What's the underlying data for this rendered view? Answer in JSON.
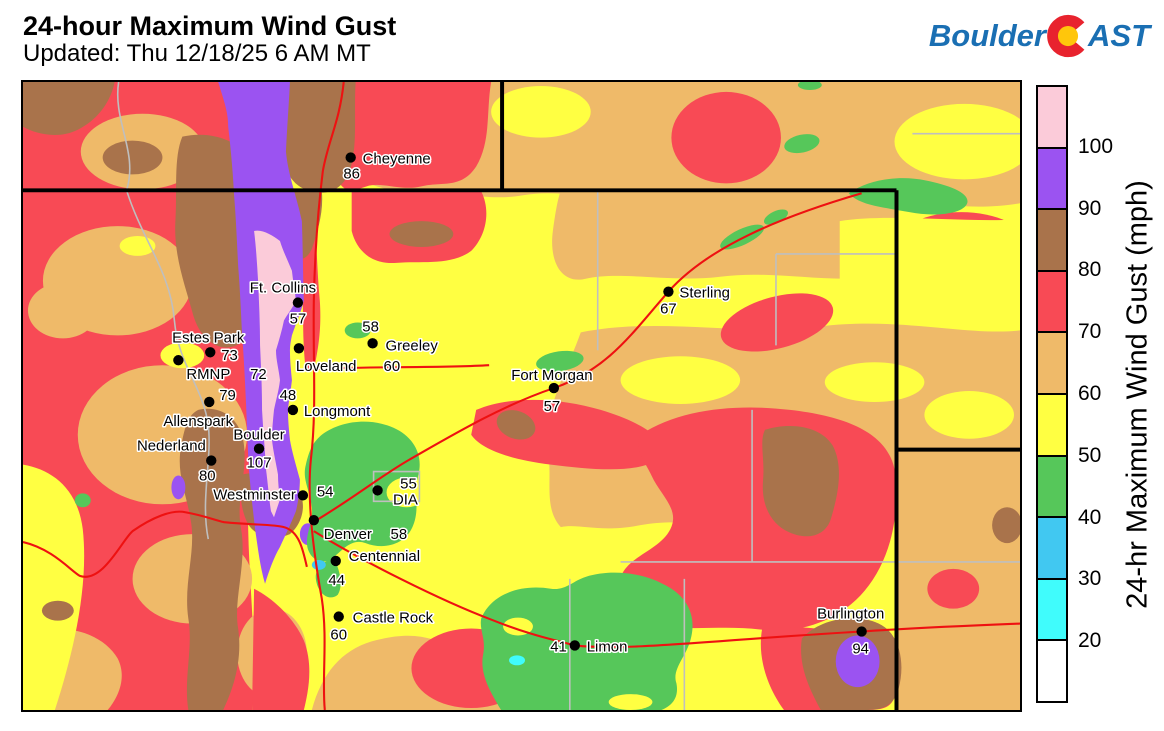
{
  "header": {
    "title": "24-hour Maximum Wind Gust",
    "subtitle": "Updated: Thu 12/18/25 6 AM MT"
  },
  "logo": {
    "prefix": "Boulder",
    "suffix": "AST",
    "blue": "#1A6FB3",
    "red": "#E8232E",
    "yellow": "#FFC60B"
  },
  "legend": {
    "axis_label": "24-hr Maximum Wind Gust (mph)",
    "ticks": [
      100,
      90,
      80,
      70,
      60,
      50,
      40,
      30,
      20
    ],
    "swatches_top_to_bottom": [
      {
        "range": ">100",
        "color": "#FBCBD9"
      },
      {
        "range": "90-100",
        "color": "#9B53F1"
      },
      {
        "range": "80-90",
        "color": "#A9734B"
      },
      {
        "range": "70-80",
        "color": "#F84A55"
      },
      {
        "range": "60-70",
        "color": "#EFBA69"
      },
      {
        "range": "50-60",
        "color": "#FFFF42"
      },
      {
        "range": "40-50",
        "color": "#56C75A"
      },
      {
        "range": "30-40",
        "color": "#41C8F1"
      },
      {
        "range": "20-30",
        "color": "#40FCFC"
      },
      {
        "range": "<20",
        "color": "#FFFFFF"
      }
    ]
  },
  "map": {
    "cities": [
      {
        "id": "cheyenne",
        "name": "Cheyenne",
        "value": 86,
        "dot": [
          329,
          76
        ],
        "name_pos": [
          341,
          82,
          "s"
        ],
        "val_pos": [
          330,
          97,
          "m"
        ]
      },
      {
        "id": "ft-collins",
        "name": "Ft. Collins",
        "value": 57,
        "dot": [
          276,
          222
        ],
        "name_pos": [
          261,
          212,
          "m"
        ],
        "val_pos": [
          276,
          243,
          "m"
        ]
      },
      {
        "id": "estes-park",
        "name": "Estes Park",
        "value": 73,
        "dot": [
          188,
          272
        ],
        "name_pos": [
          186,
          262,
          "m"
        ],
        "val_pos": [
          199,
          280,
          "s"
        ]
      },
      {
        "id": "rmnp",
        "name": "RMNP",
        "value": 72,
        "dot": [
          156,
          280
        ],
        "name_pos": [
          164,
          299,
          "s"
        ],
        "val_pos": [
          228,
          299,
          "s"
        ]
      },
      {
        "id": "greeley",
        "name": "Greeley",
        "value": 58,
        "dot": [
          351,
          263
        ],
        "name_pos": [
          364,
          270,
          "s"
        ],
        "val_pos": [
          349,
          251,
          "m"
        ]
      },
      {
        "id": "loveland",
        "name": "Loveland",
        "value": 60,
        "dot": [
          277,
          268
        ],
        "name_pos": [
          274,
          291,
          "s"
        ],
        "val_pos": [
          362,
          291,
          "s"
        ]
      },
      {
        "id": "allenspark",
        "name": "Allenspark",
        "value": 79,
        "dot": [
          187,
          322
        ],
        "name_pos": [
          141,
          346,
          "s"
        ],
        "val_pos": [
          197,
          320,
          "s"
        ]
      },
      {
        "id": "longmont",
        "name": "Longmont",
        "value": 48,
        "dot": [
          271,
          330
        ],
        "name_pos": [
          282,
          336,
          "s"
        ],
        "val_pos": [
          266,
          320,
          "m"
        ]
      },
      {
        "id": "boulder",
        "name": "Boulder",
        "value": 107,
        "dot": [
          237,
          369
        ],
        "name_pos": [
          237,
          360,
          "m"
        ],
        "val_pos": [
          237,
          388,
          "m"
        ]
      },
      {
        "id": "nederland",
        "name": "Nederland",
        "value": 80,
        "dot": [
          189,
          381
        ],
        "name_pos": [
          149,
          371,
          "m"
        ],
        "val_pos": [
          185,
          401,
          "m"
        ]
      },
      {
        "id": "westminster",
        "name": "Westminster",
        "value": 54,
        "dot": [
          281,
          416
        ],
        "name_pos": [
          274,
          420,
          "e"
        ],
        "val_pos": [
          295,
          417,
          "s"
        ]
      },
      {
        "id": "dia",
        "name": "DIA",
        "value": 55,
        "dot": [
          356,
          411
        ],
        "name_pos": [
          384,
          425,
          "m"
        ],
        "val_pos": [
          387,
          409,
          "m"
        ]
      },
      {
        "id": "denver",
        "name": "Denver",
        "value": 58,
        "dot": [
          292,
          441
        ],
        "name_pos": [
          302,
          460,
          "s"
        ],
        "val_pos": [
          369,
          460,
          "s"
        ]
      },
      {
        "id": "centennial",
        "name": "Centennial",
        "value": 44,
        "dot": [
          314,
          482
        ],
        "name_pos": [
          327,
          482,
          "s"
        ],
        "val_pos": [
          315,
          506,
          "m"
        ]
      },
      {
        "id": "castle-rock",
        "name": "Castle Rock",
        "value": 60,
        "dot": [
          317,
          538
        ],
        "name_pos": [
          331,
          544,
          "s"
        ],
        "val_pos": [
          317,
          561,
          "m"
        ]
      },
      {
        "id": "fort-morgan",
        "name": "Fort Morgan",
        "value": 57,
        "dot": [
          533,
          308
        ],
        "name_pos": [
          531,
          300,
          "m"
        ],
        "val_pos": [
          531,
          331,
          "m"
        ]
      },
      {
        "id": "sterling",
        "name": "Sterling",
        "value": 67,
        "dot": [
          648,
          211
        ],
        "name_pos": [
          659,
          217,
          "s"
        ],
        "val_pos": [
          648,
          233,
          "m"
        ]
      },
      {
        "id": "limon",
        "name": "Limon",
        "value": 41,
        "dot": [
          554,
          567
        ],
        "name_pos": [
          566,
          573,
          "s"
        ],
        "val_pos": [
          546,
          573,
          "e"
        ]
      },
      {
        "id": "burlington",
        "name": "Burlington",
        "value": 94,
        "dot": [
          842,
          553
        ],
        "name_pos": [
          831,
          540,
          "m"
        ],
        "val_pos": [
          841,
          575,
          "m"
        ]
      }
    ]
  }
}
